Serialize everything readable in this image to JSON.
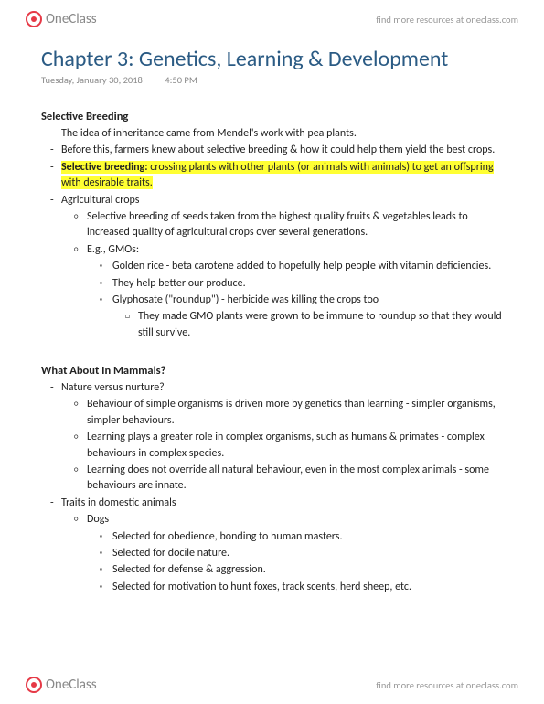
{
  "brand": {
    "logo_text": "OneClass",
    "tagline": "find more resources at oneclass.com"
  },
  "doc": {
    "title": "Chapter 3: Genetics, Learning & Development",
    "date": "Tuesday, January 30, 2018",
    "time": "4:50 PM"
  },
  "sections": {
    "s1": {
      "heading": "Selective Breeding",
      "b1": "The idea of inheritance came from Mendel's work with pea plants.",
      "b2": "Before this, farmers knew about selective breeding & how it could help them yield the best crops.",
      "b3_hl1": "Selective breeding:",
      "b3_hl2": " crossing plants with other plants (or animals with animals) to get an offspring with desirable traits.",
      "b4": "Agricultural crops",
      "b4_1": "Selective breeding of seeds taken from the highest quality fruits & vegetables leads to increased quality of agricultural crops over several generations.",
      "b4_2": "E.g., GMOs:",
      "b4_2_1": "Golden rice - beta carotene added to hopefully help people with vitamin deficiencies.",
      "b4_2_2": "They help better our produce.",
      "b4_2_3": "Glyphosate (\"roundup\") - herbicide was killing the crops too",
      "b4_2_3_1": "They made GMO plants were grown to be immune to roundup so that they would still survive."
    },
    "s2": {
      "heading": "What About In Mammals?",
      "b1": "Nature versus nurture?",
      "b1_1": "Behaviour of simple organisms is driven more by genetics than learning - simpler organisms, simpler behaviours.",
      "b1_2": "Learning plays a greater role in complex organisms, such as humans & primates - complex behaviours in complex species.",
      "b1_3": "Learning does not override all natural behaviour, even in the most complex animals - some behaviours are innate.",
      "b2": "Traits in domestic animals",
      "b2_1": "Dogs",
      "b2_1_1": "Selected for obedience, bonding to human masters.",
      "b2_1_2": "Selected for docile nature.",
      "b2_1_3": "Selected for defense & aggression.",
      "b2_1_4": "Selected for motivation to hunt foxes, track scents, herd sheep, etc."
    }
  },
  "colors": {
    "title": "#2b5b84",
    "highlight": "#ffff33",
    "meta": "#8a8a8a",
    "accent": "#e63946"
  }
}
